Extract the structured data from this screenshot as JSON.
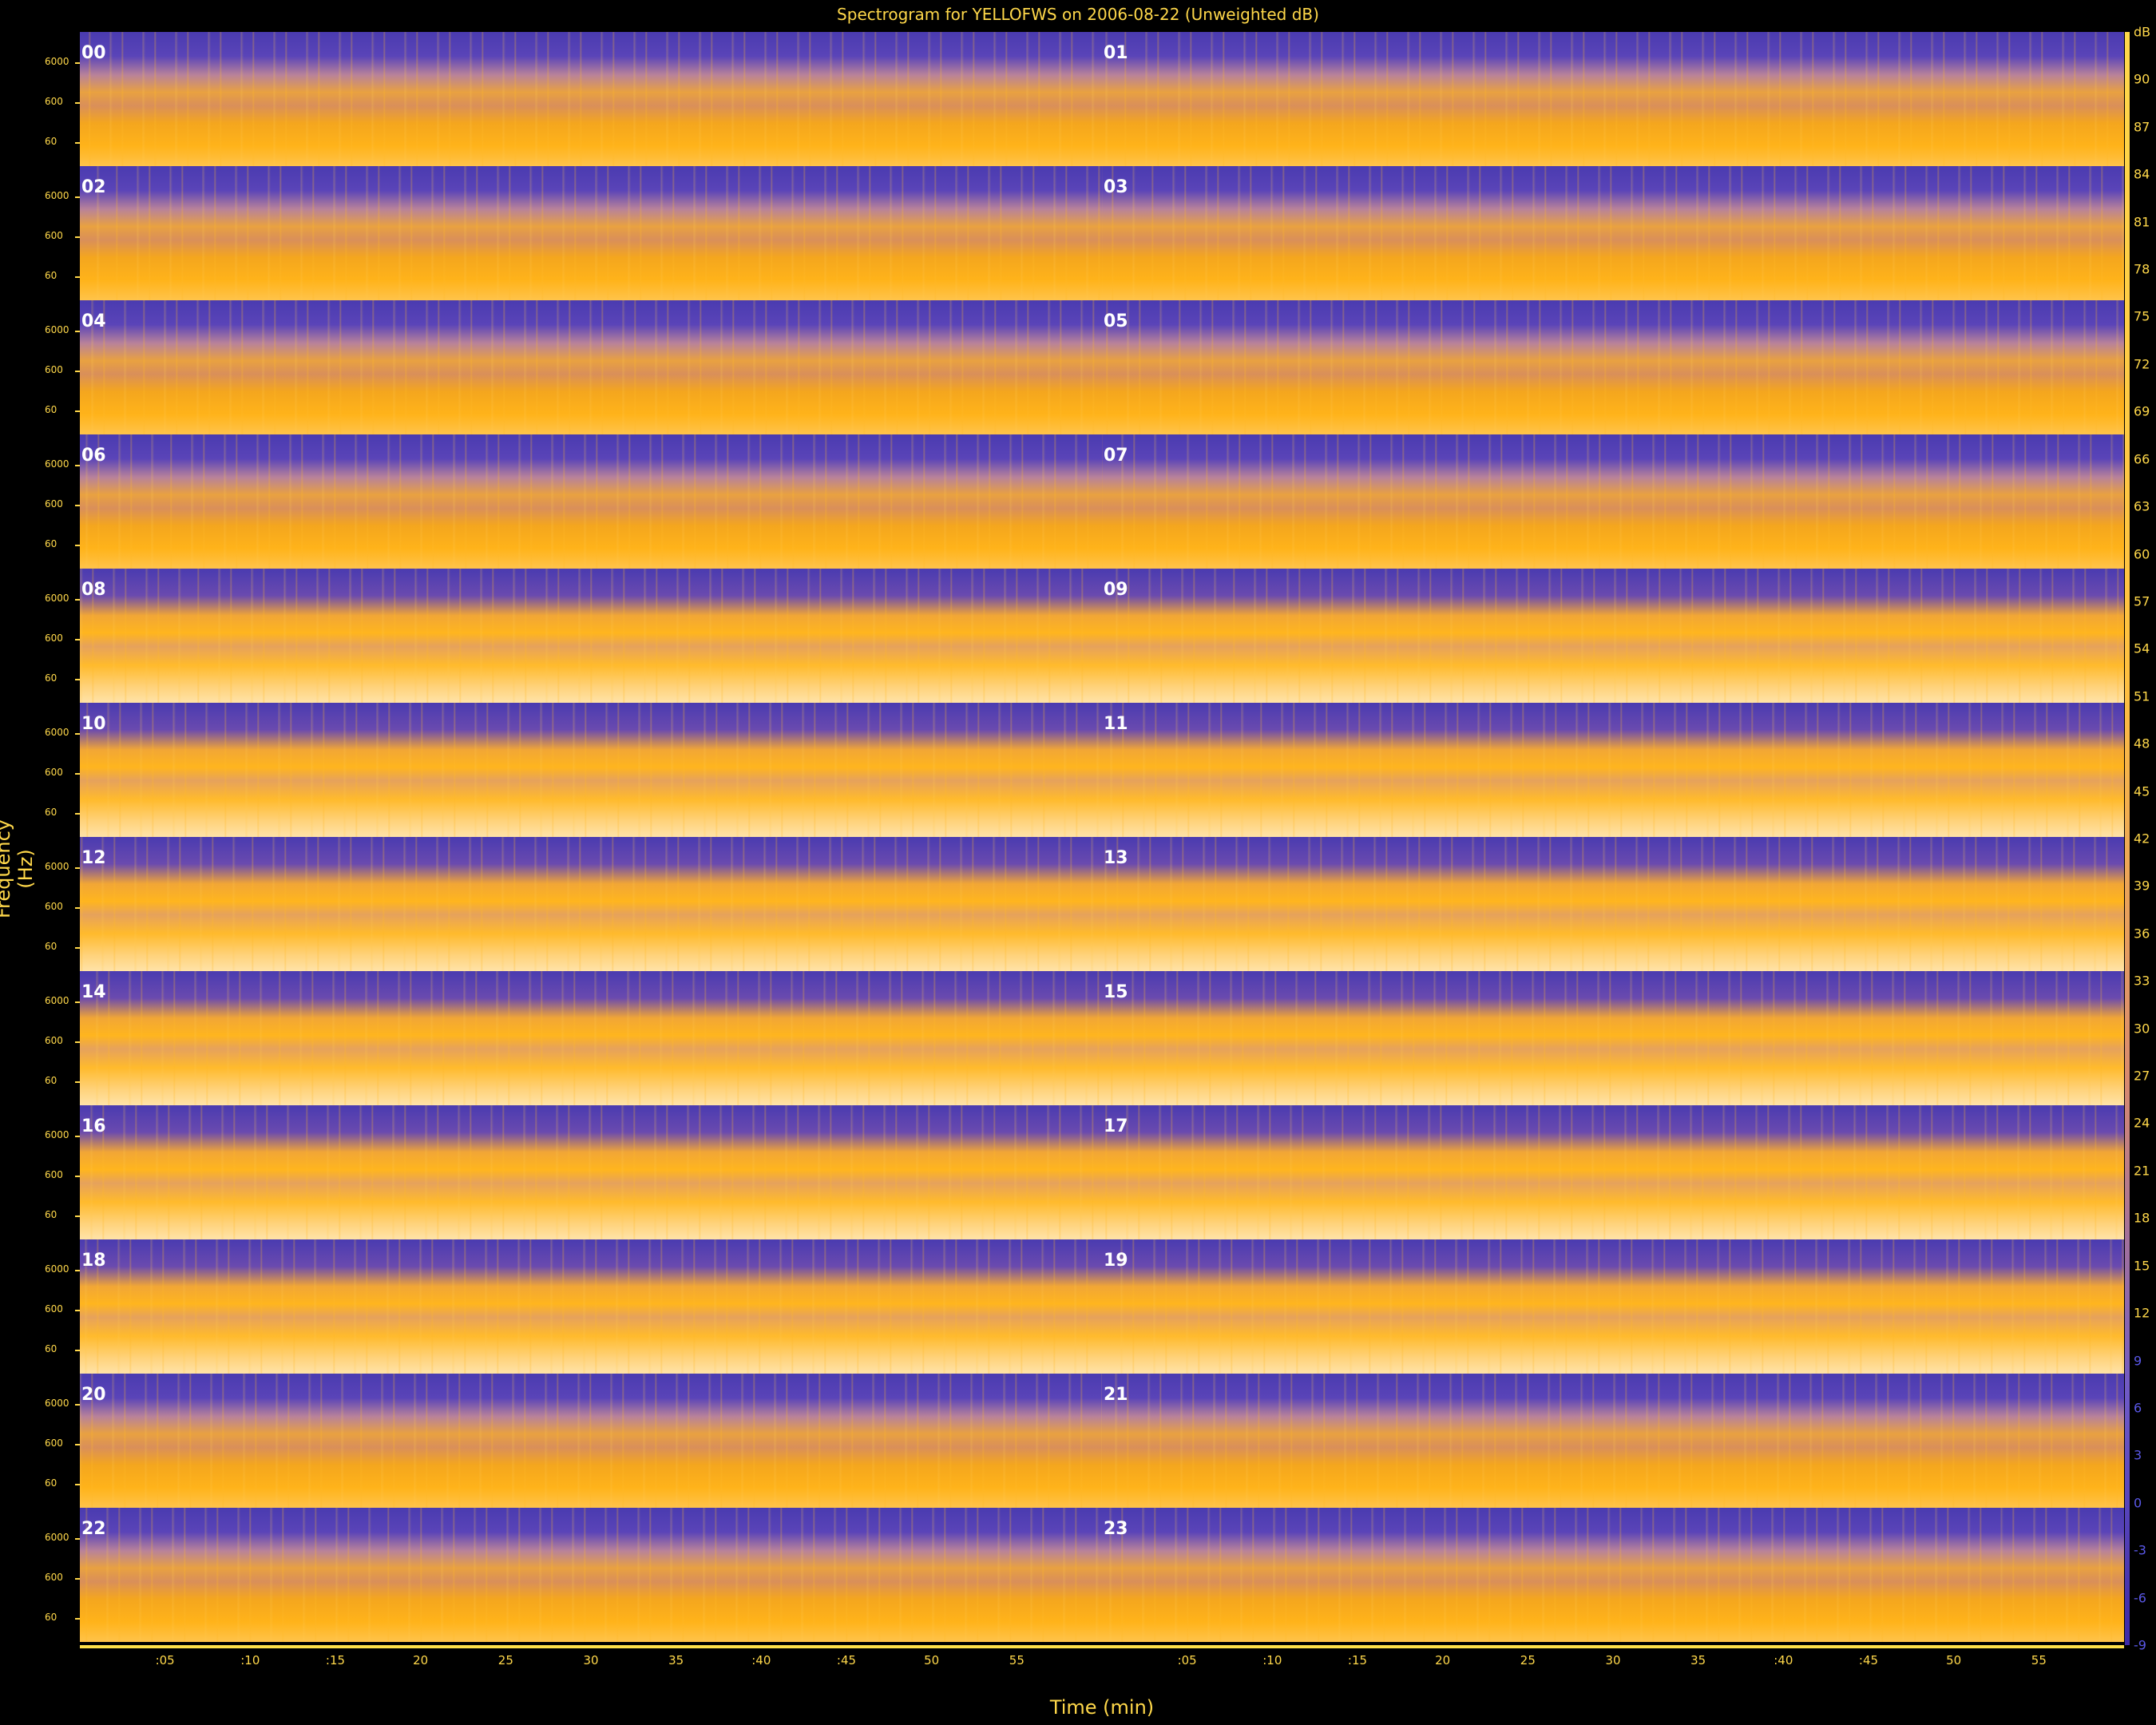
{
  "chart_data": {
    "type": "heatmap",
    "title": "Spectrogram for YELLOFWS on 2006-08-22 (Unweighted dB)",
    "xlabel": "Time (min)",
    "ylabel": "Frequency (Hz)",
    "colorbar_label": "dB",
    "colorbar_range": [
      -9,
      93
    ],
    "colorbar_ticks": [
      "dB",
      "90",
      "87",
      "84",
      "81",
      "78",
      "75",
      "72",
      "69",
      "66",
      "63",
      "60",
      "57",
      "54",
      "51",
      "48",
      "45",
      "42",
      "39",
      "36",
      "33",
      "30",
      "27",
      "24",
      "21",
      "18",
      "15",
      "12",
      "9",
      "6",
      "3",
      "0",
      "-3",
      "-6",
      "-9"
    ],
    "y_ticks": [
      "6000",
      "600",
      "60"
    ],
    "x_ticks": [
      ":05",
      ":10",
      ":15",
      "20",
      "25",
      "30",
      "35",
      ":40",
      ":45",
      "50",
      "55",
      "",
      ":05",
      ":10",
      ":15",
      "20",
      "25",
      "30",
      "35",
      ":40",
      ":45",
      "50",
      "55"
    ],
    "panels": [
      "00",
      "01",
      "02",
      "03",
      "04",
      "05",
      "06",
      "07",
      "08",
      "09",
      "10",
      "11",
      "12",
      "13",
      "14",
      "15",
      "16",
      "17",
      "18",
      "19",
      "20",
      "21",
      "22",
      "23"
    ],
    "panel_layout": "12 rows x 2 columns, each panel one hour",
    "colors": {
      "low": "#4a3bb0",
      "mid": "#e9a140",
      "high": "#ffe3a8",
      "axis": "#ffd84a"
    }
  }
}
